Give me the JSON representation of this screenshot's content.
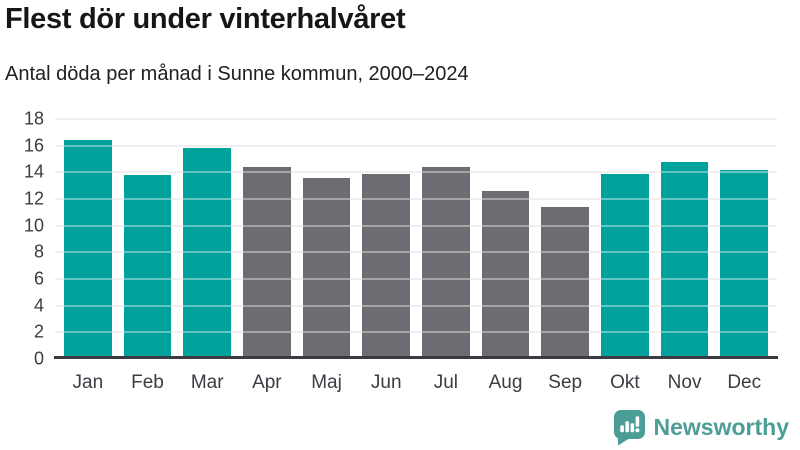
{
  "page": {
    "title": "Flest dör under vinterhalvåret",
    "subtitle": "Antal döda per månad i Sunne kommun, 2000–2024"
  },
  "chart_data": {
    "type": "bar",
    "title": "Flest dör under vinterhalvåret",
    "subtitle": "Antal döda per månad i Sunne kommun, 2000–2024",
    "categories": [
      "Jan",
      "Feb",
      "Mar",
      "Apr",
      "Maj",
      "Jun",
      "Jul",
      "Aug",
      "Sep",
      "Okt",
      "Nov",
      "Dec"
    ],
    "values": [
      16.4,
      13.8,
      15.8,
      14.4,
      13.6,
      13.9,
      14.4,
      12.6,
      11.4,
      13.9,
      14.8,
      14.2
    ],
    "bar_groups": [
      "winter",
      "winter",
      "winter",
      "summer",
      "summer",
      "summer",
      "summer",
      "summer",
      "summer",
      "winter",
      "winter",
      "winter"
    ],
    "group_colors": {
      "winter": "#00a29b",
      "summer": "#6d6c72"
    },
    "xlabel": "",
    "ylabel": "",
    "ylim": [
      0,
      18
    ],
    "yticks": [
      0,
      2,
      4,
      6,
      8,
      10,
      12,
      14,
      16,
      18
    ],
    "grid": true,
    "legend": "none",
    "axis_color": "#3a3a41",
    "gridline_color": "#e5e5e8"
  },
  "footer": {
    "brand": "Newsworthy",
    "brand_color": "#4b9e95"
  }
}
